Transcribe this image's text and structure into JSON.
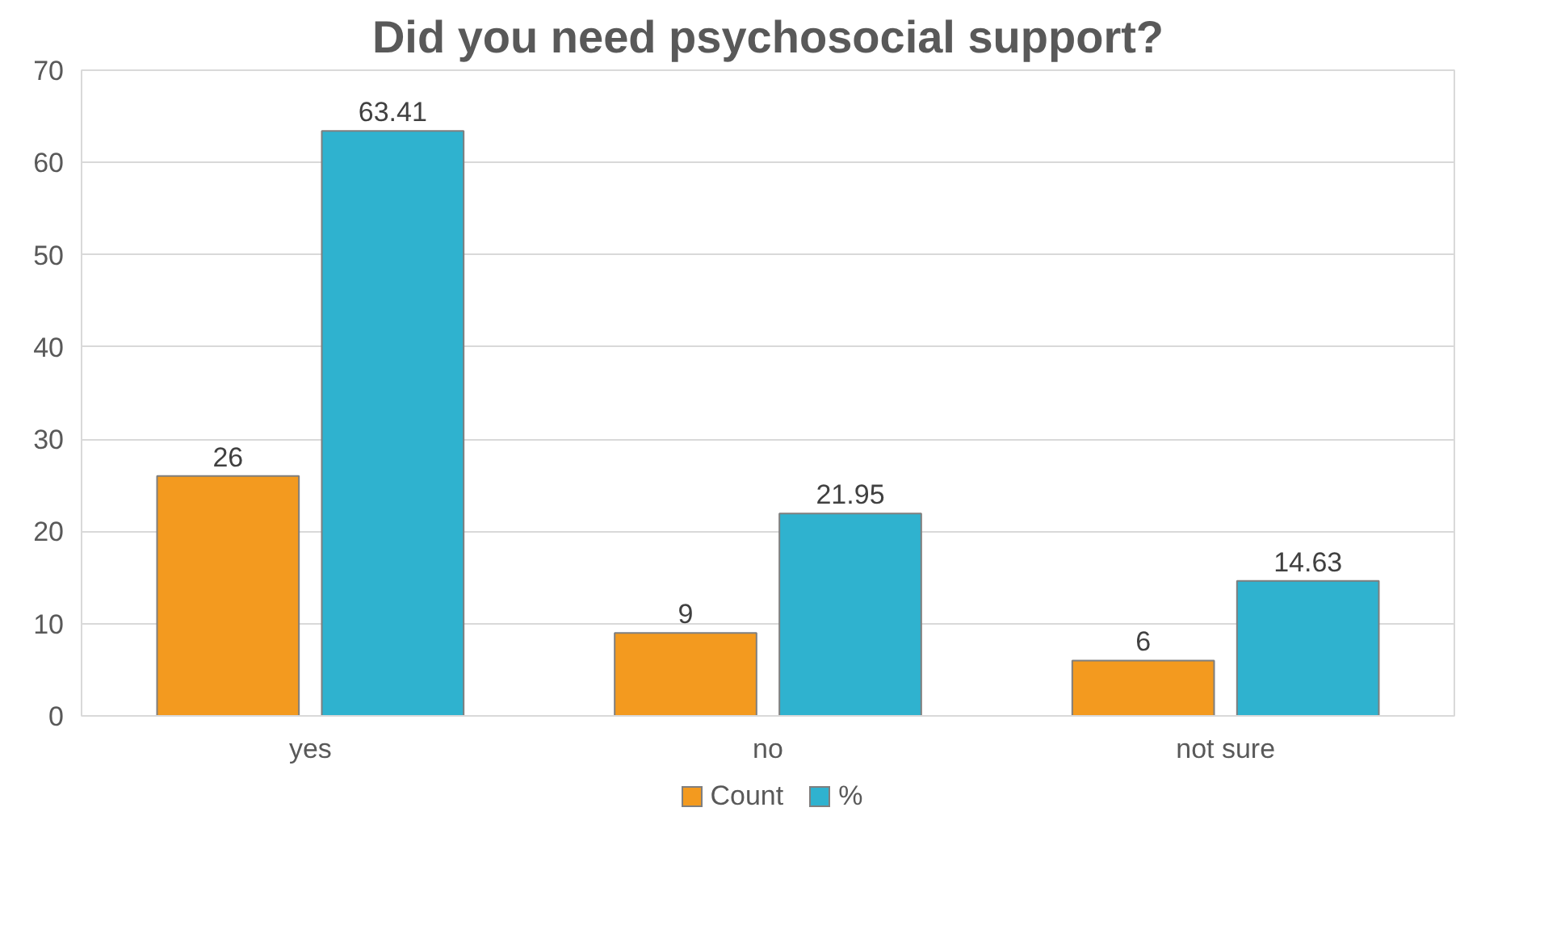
{
  "chart_data": {
    "type": "bar",
    "title": "Did you need psychosocial support?",
    "categories": [
      "yes",
      "no",
      "not sure"
    ],
    "series": [
      {
        "name": "Count",
        "color": "#f39a1f",
        "values": [
          26,
          9,
          6
        ]
      },
      {
        "name": "%",
        "color": "#2fb2cf",
        "values": [
          63.41,
          21.95,
          14.63
        ]
      }
    ],
    "ylim": [
      0,
      70
    ],
    "yticks": [
      0,
      10,
      20,
      30,
      40,
      50,
      60,
      70
    ],
    "grid": "y",
    "legend": "bottom",
    "data_labels": true
  }
}
